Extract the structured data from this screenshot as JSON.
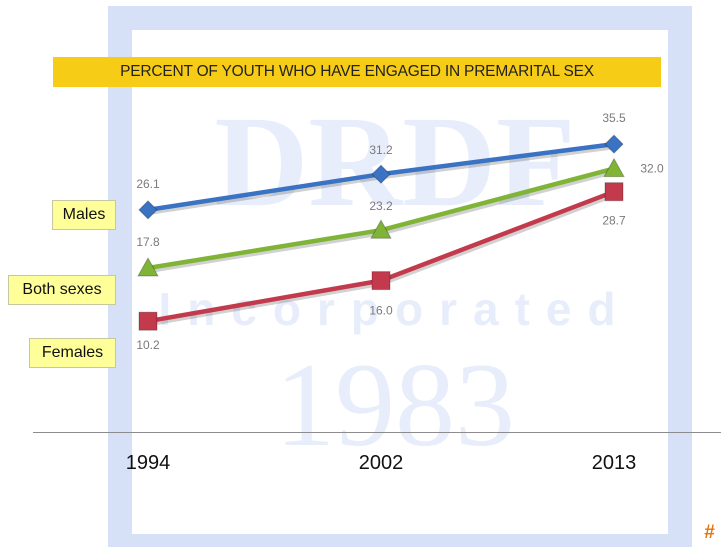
{
  "chart_data": {
    "type": "line",
    "title": "PERCENT OF YOUTH WHO HAVE ENGAGED IN PREMARITAL SEX",
    "categories": [
      "1994",
      "2002",
      "2013"
    ],
    "series": [
      {
        "name": "Males",
        "values": [
          26.1,
          31.2,
          35.5
        ],
        "color": "#3a72c4",
        "marker": "diamond"
      },
      {
        "name": "Both sexes",
        "values": [
          17.8,
          23.2,
          32.0
        ],
        "color": "#7fb436",
        "marker": "triangle"
      },
      {
        "name": "Females",
        "values": [
          10.2,
          16.0,
          28.7
        ],
        "color": "#c23a4c",
        "marker": "square"
      }
    ],
    "value_labels": {
      "Males": [
        "26.1",
        "31.2",
        "35.5"
      ],
      "Both sexes": [
        "17.8",
        "23.2",
        "32.0"
      ],
      "Females": [
        "10.2",
        "16.0",
        "28.7"
      ]
    },
    "xlabel": "",
    "ylabel": "",
    "ylim": [
      0,
      40
    ],
    "grid": false,
    "legend": "left, inline series labels"
  },
  "watermark": {
    "text_top": "DRDF",
    "text_middle": "Incorporated",
    "text_bottom": "1983",
    "color": "#b8c8f0"
  },
  "page_mark": "#"
}
